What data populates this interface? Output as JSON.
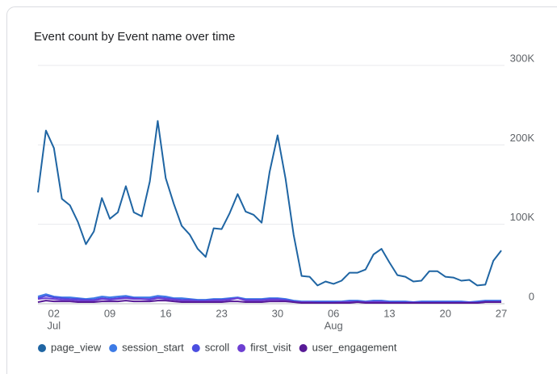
{
  "chart_data": {
    "type": "line",
    "title": "Event count by Event name over time",
    "categories": [
      null,
      null,
      "02",
      null,
      null,
      null,
      null,
      null,
      null,
      "09",
      null,
      null,
      null,
      null,
      null,
      null,
      "16",
      null,
      null,
      null,
      null,
      null,
      null,
      "23",
      null,
      null,
      null,
      null,
      null,
      null,
      "30",
      null,
      null,
      null,
      null,
      null,
      null,
      "06",
      null,
      null,
      null,
      null,
      null,
      null,
      "13",
      null,
      null,
      null,
      null,
      null,
      null,
      "20",
      null,
      null,
      null,
      null,
      null,
      null,
      "27"
    ],
    "category_months": [
      null,
      null,
      "Jul",
      null,
      null,
      null,
      null,
      null,
      null,
      null,
      null,
      null,
      null,
      null,
      null,
      null,
      null,
      null,
      null,
      null,
      null,
      null,
      null,
      null,
      null,
      null,
      null,
      null,
      null,
      null,
      null,
      null,
      null,
      null,
      null,
      null,
      null,
      "Aug",
      null,
      null,
      null,
      null,
      null,
      null,
      null,
      null,
      null,
      null,
      null,
      null,
      null,
      null,
      null,
      null,
      null,
      null,
      null,
      null,
      null
    ],
    "ylim": [
      0,
      300000
    ],
    "yticks": [
      0,
      {
        "value": 100000,
        "label": "100K"
      },
      {
        "value": 200000,
        "label": "200K"
      },
      {
        "value": 300000,
        "label": "300K"
      }
    ],
    "grid": true,
    "legend": "bottom",
    "series": [
      {
        "name": "page_view",
        "color": "#1f65a3",
        "values": [
          140000,
          218000,
          196000,
          132000,
          124000,
          103000,
          75000,
          91000,
          133000,
          107000,
          115000,
          148000,
          115000,
          110000,
          154000,
          230000,
          158000,
          126000,
          98000,
          87000,
          69000,
          59000,
          95000,
          94000,
          114000,
          138000,
          116000,
          112000,
          102000,
          166000,
          212000,
          157000,
          87000,
          35000,
          34000,
          23000,
          28000,
          25000,
          29000,
          39000,
          39000,
          43000,
          62000,
          69000,
          52000,
          36000,
          34000,
          28000,
          29000,
          41000,
          41000,
          34000,
          33000,
          29000,
          30000,
          23000,
          24000,
          54000,
          67000
        ]
      },
      {
        "name": "session_start",
        "color": "#3d7be6",
        "values": [
          9000,
          12000,
          9000,
          8000,
          8000,
          7000,
          6000,
          7000,
          9000,
          8000,
          9000,
          10000,
          8000,
          8000,
          8000,
          10000,
          9000,
          7000,
          7000,
          6000,
          5000,
          5000,
          6000,
          6000,
          7000,
          8000,
          6000,
          6000,
          6000,
          7000,
          7000,
          6000,
          4000,
          3000,
          3000,
          3000,
          3000,
          3000,
          3000,
          4000,
          4000,
          3000,
          4000,
          4000,
          3000,
          3000,
          3000,
          2000,
          3000,
          3000,
          3000,
          3000,
          3000,
          3000,
          2000,
          3000,
          4000,
          4000,
          4000
        ]
      },
      {
        "name": "scroll",
        "color": "#4b4ee0",
        "values": [
          7000,
          10000,
          8000,
          7000,
          6000,
          6000,
          5000,
          5000,
          7000,
          6000,
          7000,
          8000,
          7000,
          6000,
          6000,
          8000,
          7000,
          6000,
          5000,
          5000,
          4000,
          4000,
          5000,
          5000,
          6000,
          7000,
          5000,
          5000,
          5000,
          6000,
          6000,
          5000,
          3000,
          2000,
          2000,
          2000,
          2000,
          2000,
          2000,
          3000,
          3000,
          2000,
          3000,
          3000,
          2000,
          2000,
          2000,
          2000,
          2000,
          2000,
          2000,
          2000,
          2000,
          2000,
          2000,
          2000,
          3000,
          3000,
          3000
        ]
      },
      {
        "name": "first_visit",
        "color": "#6d3fd2",
        "values": [
          6000,
          7000,
          6000,
          5000,
          5000,
          4000,
          4000,
          4000,
          6000,
          5000,
          6000,
          7000,
          6000,
          6000,
          5000,
          7000,
          6000,
          5000,
          4000,
          4000,
          3000,
          3000,
          4000,
          4000,
          5000,
          7000,
          4000,
          4000,
          4000,
          5000,
          5000,
          4000,
          2000,
          2000,
          2000,
          1000,
          1000,
          1000,
          2000,
          2000,
          2000,
          2000,
          2000,
          2000,
          1000,
          1000,
          1000,
          1000,
          1000,
          1000,
          1000,
          1000,
          1000,
          1000,
          1000,
          1000,
          2000,
          2000,
          2000
        ]
      },
      {
        "name": "user_engagement",
        "color": "#571a96",
        "values": [
          2000,
          4000,
          3000,
          3000,
          3000,
          2000,
          2000,
          2000,
          3000,
          3000,
          3000,
          4000,
          3000,
          3000,
          3000,
          4000,
          4000,
          3000,
          2000,
          2000,
          2000,
          2000,
          2000,
          2000,
          3000,
          3000,
          2000,
          2000,
          2000,
          3000,
          3000,
          3000,
          2000,
          1000,
          1000,
          1000,
          1000,
          1000,
          1000,
          1000,
          2000,
          1000,
          1000,
          1000,
          1000,
          1000,
          1000,
          1000,
          1000,
          1000,
          1000,
          1000,
          1000,
          1000,
          1000,
          1000,
          2000,
          2000,
          2000
        ]
      }
    ]
  }
}
